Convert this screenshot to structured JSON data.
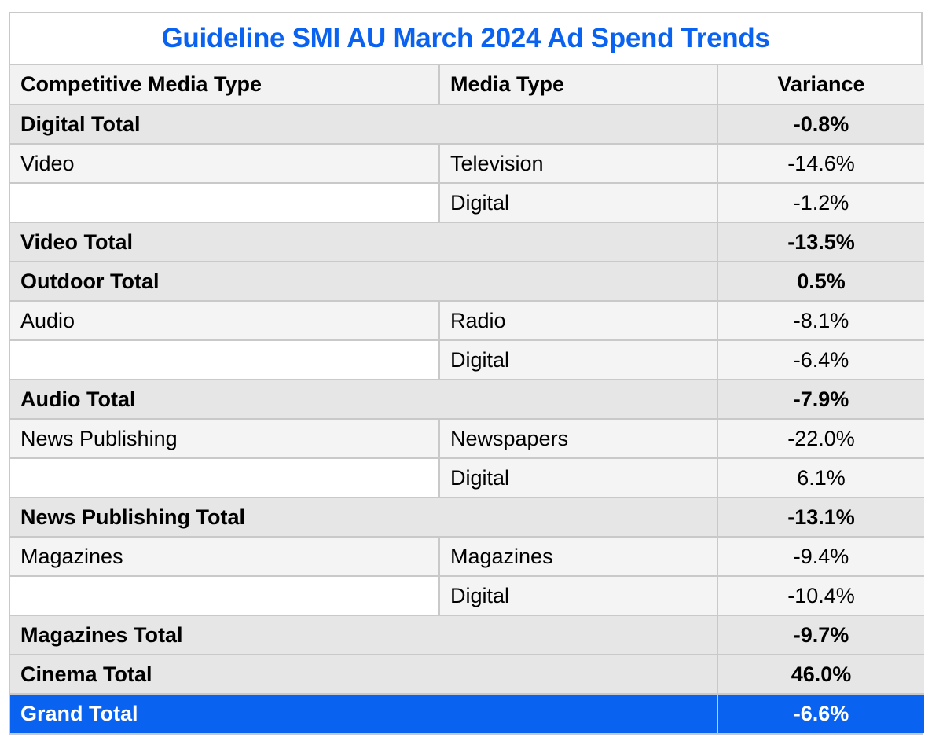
{
  "title": "Guideline SMI AU March 2024 Ad Spend Trends",
  "headers": {
    "competitive_media_type": "Competitive Media Type",
    "media_type": "Media Type",
    "variance": "Variance"
  },
  "rows": [
    {
      "kind": "total",
      "label": "Digital Total",
      "variance": "-0.8%"
    },
    {
      "kind": "detail",
      "competitive": "Video",
      "media": "Television",
      "variance": "-14.6%"
    },
    {
      "kind": "detail",
      "competitive": "",
      "media": "Digital",
      "variance": "-1.2%"
    },
    {
      "kind": "total",
      "label": "Video Total",
      "variance": "-13.5%"
    },
    {
      "kind": "total",
      "label": "Outdoor Total",
      "variance": "0.5%"
    },
    {
      "kind": "detail",
      "competitive": "Audio",
      "media": "Radio",
      "variance": "-8.1%"
    },
    {
      "kind": "detail",
      "competitive": "",
      "media": "Digital",
      "variance": "-6.4%"
    },
    {
      "kind": "total",
      "label": "Audio Total",
      "variance": "-7.9%"
    },
    {
      "kind": "detail",
      "competitive": "News Publishing",
      "media": "Newspapers",
      "variance": "-22.0%"
    },
    {
      "kind": "detail",
      "competitive": "",
      "media": "Digital",
      "variance": "6.1%"
    },
    {
      "kind": "total",
      "label": "News Publishing Total",
      "variance": "-13.1%"
    },
    {
      "kind": "detail",
      "competitive": "Magazines",
      "media": "Magazines",
      "variance": "-9.4%"
    },
    {
      "kind": "detail",
      "competitive": "",
      "media": "Digital",
      "variance": "-10.4%"
    },
    {
      "kind": "total",
      "label": "Magazines Total",
      "variance": "-9.7%"
    },
    {
      "kind": "total",
      "label": "Cinema Total",
      "variance": "46.0%"
    },
    {
      "kind": "grand",
      "label": "Grand Total",
      "variance": "-6.6%"
    }
  ],
  "colors": {
    "accent": "#0a63f0",
    "total_row": "#e6e6e6",
    "detail_row": "#f4f4f4",
    "border": "#c9c9c9"
  }
}
